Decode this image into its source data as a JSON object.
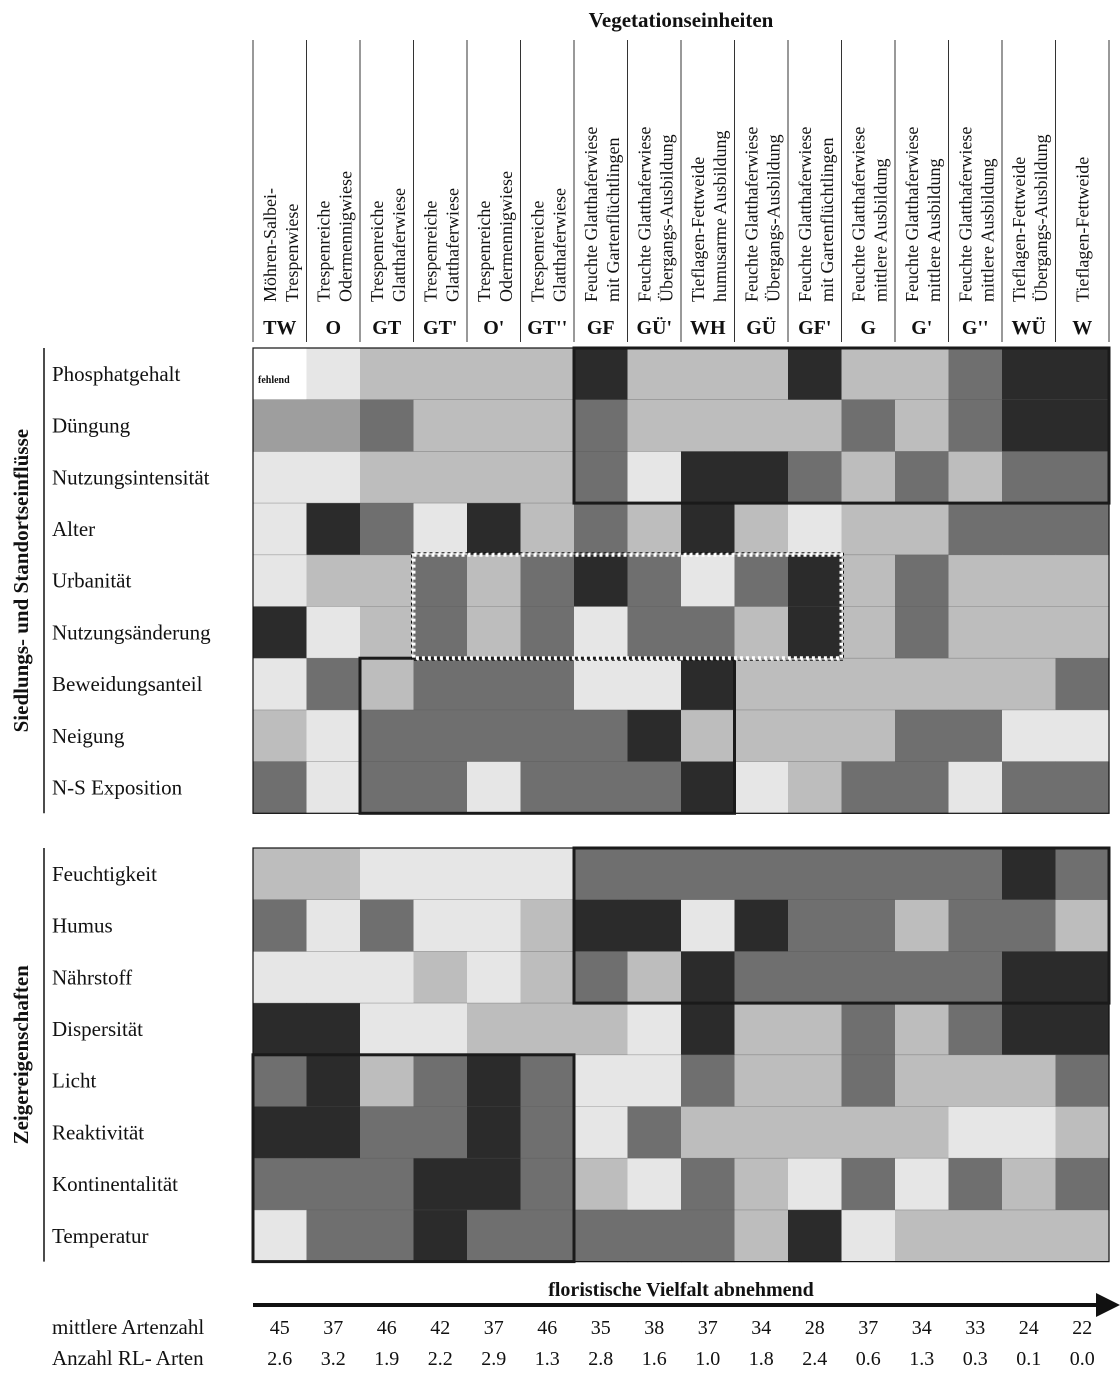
{
  "chart_data": {
    "type": "heatmap",
    "title": "Vegetationseinheiten",
    "columns": [
      {
        "abbr": "TW",
        "name": [
          "Möhren-Salbei-",
          "Trespenwiese"
        ]
      },
      {
        "abbr": "O",
        "name": [
          "Trespenreiche",
          "Odermennigwiese"
        ]
      },
      {
        "abbr": "GT",
        "name": [
          "Trespenreiche",
          "Glatthaferwiese"
        ]
      },
      {
        "abbr": "GT'",
        "name": [
          "Trespenreiche",
          "Glatthaferwiese"
        ]
      },
      {
        "abbr": "O'",
        "name": [
          "Trespenreiche",
          "Odermennigwiese"
        ]
      },
      {
        "abbr": "GT''",
        "name": [
          "Trespenreiche",
          "Glatthaferwiese"
        ]
      },
      {
        "abbr": "GF",
        "name": [
          "Feuchte Glatthaferwiese",
          "mit Gartenflüchtlingen"
        ]
      },
      {
        "abbr": "GÜ'",
        "name": [
          "Feuchte Glatthaferwiese",
          "Übergangs-Ausbildung"
        ]
      },
      {
        "abbr": "WH",
        "name": [
          "Tieflagen-Fettweide",
          "humusarme Ausbildung"
        ]
      },
      {
        "abbr": "GÜ",
        "name": [
          "Feuchte Glatthaferwiese",
          "Übergangs-Ausbildung"
        ]
      },
      {
        "abbr": "GF'",
        "name": [
          "Feuchte Glatthaferwiese",
          "mit Gartenflüchtlingen"
        ]
      },
      {
        "abbr": "G",
        "name": [
          "Feuchte Glatthaferwiese",
          "mittlere Ausbildung"
        ]
      },
      {
        "abbr": "G'",
        "name": [
          "Feuchte Glatthaferwiese",
          "mittlere Ausbildung"
        ]
      },
      {
        "abbr": "G''",
        "name": [
          "Feuchte Glatthaferwiese",
          "mittlere Ausbildung"
        ]
      },
      {
        "abbr": "WÜ",
        "name": [
          "Tieflagen-Fettweide",
          "Übergangs-Ausbildung"
        ]
      },
      {
        "abbr": "W",
        "name": [
          "Tieflagen-Fettweide"
        ]
      }
    ],
    "groups": [
      {
        "label": "Siedlungs- und Standortseinflüsse",
        "rows": [
          {
            "label": "Phosphatgehalt",
            "values": [
              null,
              1,
              2,
              2,
              2,
              2,
              5,
              2,
              2,
              2,
              5,
              2,
              2,
              4,
              5,
              5
            ]
          },
          {
            "label": "Düngung",
            "values": [
              3,
              3,
              4,
              2,
              2,
              2,
              4,
              2,
              2,
              2,
              2,
              4,
              2,
              4,
              5,
              5
            ]
          },
          {
            "label": "Nutzungsintensität",
            "values": [
              1,
              1,
              2,
              2,
              2,
              2,
              4,
              1,
              5,
              5,
              4,
              2,
              4,
              2,
              4,
              4
            ]
          },
          {
            "label": "Alter",
            "values": [
              1,
              5,
              4,
              1,
              5,
              2,
              4,
              2,
              5,
              2,
              1,
              2,
              2,
              4,
              4,
              4
            ]
          },
          {
            "label": "Urbanität",
            "values": [
              1,
              2,
              2,
              4,
              2,
              4,
              5,
              4,
              1,
              4,
              5,
              2,
              4,
              2,
              2,
              2
            ]
          },
          {
            "label": "Nutzungsänderung",
            "values": [
              5,
              1,
              2,
              4,
              2,
              4,
              1,
              4,
              4,
              2,
              5,
              2,
              4,
              2,
              2,
              2
            ]
          },
          {
            "label": "Beweidungsanteil",
            "values": [
              1,
              4,
              2,
              4,
              4,
              4,
              1,
              1,
              5,
              2,
              2,
              2,
              2,
              2,
              2,
              4
            ]
          },
          {
            "label": "Neigung",
            "values": [
              2,
              1,
              4,
              4,
              4,
              4,
              4,
              5,
              2,
              2,
              2,
              2,
              4,
              4,
              1,
              1
            ]
          },
          {
            "label": "N-S Exposition",
            "values": [
              4,
              1,
              4,
              4,
              1,
              4,
              4,
              4,
              5,
              1,
              2,
              4,
              4,
              1,
              4,
              4
            ]
          }
        ]
      },
      {
        "label": "Zeigereigenschaften",
        "rows": [
          {
            "label": "Feuchtigkeit",
            "values": [
              2,
              2,
              1,
              1,
              1,
              1,
              4,
              4,
              4,
              4,
              4,
              4,
              4,
              4,
              5,
              4
            ]
          },
          {
            "label": "Humus",
            "values": [
              4,
              1,
              4,
              1,
              1,
              2,
              5,
              5,
              1,
              5,
              4,
              4,
              2,
              4,
              4,
              2
            ]
          },
          {
            "label": "Nährstoff",
            "values": [
              1,
              1,
              1,
              2,
              1,
              2,
              4,
              2,
              5,
              4,
              4,
              4,
              4,
              4,
              5,
              5
            ]
          },
          {
            "label": "Dispersität",
            "values": [
              5,
              5,
              1,
              1,
              2,
              2,
              2,
              1,
              5,
              2,
              2,
              4,
              2,
              4,
              5,
              5
            ]
          },
          {
            "label": "Licht",
            "values": [
              4,
              5,
              2,
              4,
              5,
              4,
              1,
              1,
              4,
              2,
              2,
              4,
              2,
              2,
              2,
              4
            ]
          },
          {
            "label": "Reaktivität",
            "values": [
              5,
              5,
              4,
              4,
              5,
              4,
              1,
              4,
              2,
              2,
              2,
              2,
              2,
              1,
              1,
              2
            ]
          },
          {
            "label": "Kontinentalität",
            "values": [
              4,
              4,
              4,
              5,
              5,
              4,
              2,
              1,
              4,
              2,
              1,
              4,
              1,
              4,
              2,
              4
            ]
          },
          {
            "label": "Temperatur",
            "values": [
              1,
              4,
              4,
              5,
              4,
              4,
              4,
              4,
              4,
              2,
              5,
              1,
              2,
              2,
              2,
              2
            ]
          }
        ]
      }
    ],
    "missing_label": "fehlend",
    "axis_arrow_label": "floristische Vielfalt abnehmend",
    "stats": [
      {
        "label": "mittlere Artenzahl",
        "values": [
          "45",
          "37",
          "46",
          "42",
          "37",
          "46",
          "35",
          "38",
          "37",
          "34",
          "28",
          "37",
          "34",
          "33",
          "24",
          "22"
        ]
      },
      {
        "label": "Anzahl RL- Arten",
        "values": [
          "2.6",
          "3.2",
          "1.9",
          "2.2",
          "2.9",
          "1.3",
          "2.8",
          "1.6",
          "1.0",
          "1.8",
          "2.4",
          "0.6",
          "1.3",
          "0.3",
          "0.1",
          "0.0"
        ]
      }
    ],
    "shade_colors": {
      "1": "#e6e6e6",
      "2": "#bdbdbd",
      "3": "#9e9e9e",
      "4": "#6f6f6f",
      "5": "#2b2b2b"
    },
    "outline_color": "#1a1a1a",
    "hatch_color": "#ffffff"
  }
}
